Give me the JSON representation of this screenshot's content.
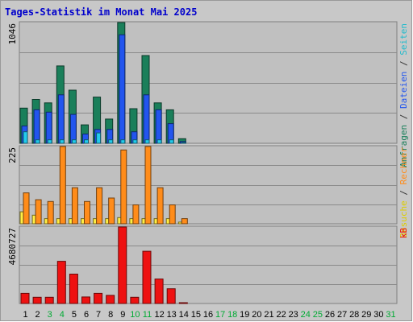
{
  "chart_data": {
    "type": "bar",
    "title": "Tages-Statistik im Monat Mai 2025",
    "categories": [
      "1",
      "2",
      "3",
      "4",
      "5",
      "6",
      "7",
      "8",
      "9",
      "10",
      "11",
      "12",
      "13",
      "14",
      "15",
      "16",
      "17",
      "18",
      "19",
      "20",
      "21",
      "22",
      "23",
      "24",
      "25",
      "26",
      "27",
      "28",
      "29",
      "30",
      "31"
    ],
    "weekend_days": [
      "3",
      "4",
      "10",
      "11",
      "17",
      "18",
      "24",
      "25",
      "31"
    ],
    "panels": [
      {
        "name": "hits",
        "max_label": "1046",
        "ymax": 1046,
        "series": [
          {
            "name": "Anfragen",
            "color": "#1a7f5a",
            "values": [
              305,
              380,
              350,
              670,
              460,
              160,
              400,
              210,
              1046,
              300,
              760,
              350,
              290,
              40,
              0,
              0,
              0,
              0,
              0,
              0,
              0,
              0,
              0,
              0,
              0,
              0,
              0,
              0,
              0,
              0,
              0
            ]
          },
          {
            "name": "Dateien",
            "color": "#2255ee",
            "values": [
              150,
              290,
              270,
              420,
              250,
              80,
              120,
              120,
              940,
              100,
              420,
              290,
              170,
              15,
              0,
              0,
              0,
              0,
              0,
              0,
              0,
              0,
              0,
              0,
              0,
              0,
              0,
              0,
              0,
              0,
              0
            ]
          },
          {
            "name": "Seiten",
            "color": "#22ccee",
            "values": [
              100,
              30,
              30,
              30,
              30,
              30,
              90,
              30,
              30,
              30,
              30,
              30,
              30,
              5,
              0,
              0,
              0,
              0,
              0,
              0,
              0,
              0,
              0,
              0,
              0,
              0,
              0,
              0,
              0,
              0,
              0
            ]
          }
        ],
        "legend_labels": [
          {
            "text": "Anfragen",
            "color": "#1a7f5a"
          },
          {
            "text": " / ",
            "color": "#333333"
          },
          {
            "text": "Dateien",
            "color": "#2255ee"
          },
          {
            "text": " / ",
            "color": "#333333"
          },
          {
            "text": "Seiten",
            "color": "#22bbcc"
          }
        ]
      },
      {
        "name": "visits",
        "max_label": "225",
        "ymax": 225,
        "series": [
          {
            "name": "Besuche",
            "color": "#ffee44",
            "values": [
              35,
              25,
              15,
              15,
              15,
              15,
              15,
              15,
              18,
              15,
              15,
              15,
              15,
              5,
              0,
              0,
              0,
              0,
              0,
              0,
              0,
              0,
              0,
              0,
              0,
              0,
              0,
              0,
              0,
              0,
              0
            ]
          },
          {
            "name": "Rechner",
            "color": "#ff8c1a",
            "values": [
              90,
              70,
              65,
              225,
              105,
              65,
              105,
              75,
              215,
              55,
              225,
              105,
              55,
              15,
              0,
              0,
              0,
              0,
              0,
              0,
              0,
              0,
              0,
              0,
              0,
              0,
              0,
              0,
              0,
              0,
              0
            ]
          }
        ],
        "legend_labels": [
          {
            "text": "Besuche",
            "color": "#ddcc00"
          },
          {
            "text": " / ",
            "color": "#333333"
          },
          {
            "text": "Rechner",
            "color": "#ff8c1a"
          }
        ]
      },
      {
        "name": "kb",
        "max_label": "4680727",
        "ymax": 4680727,
        "series": [
          {
            "name": "kB",
            "color": "#ee1111",
            "values": [
              620000,
              380000,
              380000,
              2580000,
              1800000,
              400000,
              620000,
              500000,
              4680727,
              380000,
              3200000,
              1500000,
              900000,
              40000,
              0,
              0,
              0,
              0,
              0,
              0,
              0,
              0,
              0,
              0,
              0,
              0,
              0,
              0,
              0,
              0,
              0
            ]
          }
        ],
        "legend_labels": [
          {
            "text": "kB",
            "color": "#ee1111"
          }
        ]
      }
    ],
    "colors": {
      "background": "#c0c0c0",
      "title": "#0000cc",
      "weekday_label": "#000000",
      "weekend_label": "#00aa33"
    }
  }
}
